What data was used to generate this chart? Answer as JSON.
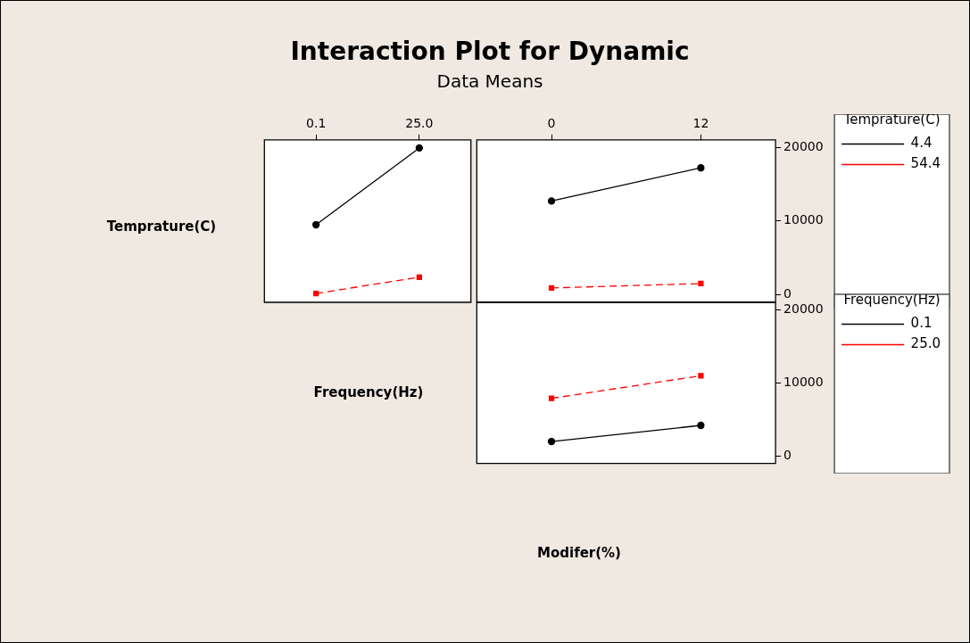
{
  "chart_data": [
    {
      "type": "line",
      "ylabel": "Temprature(C)",
      "xlabel": "Frequency(Hz)",
      "categories": [
        "0.1",
        "25.0"
      ],
      "ylim": [
        -1000,
        21000
      ],
      "tick_labels": "x",
      "series": [
        {
          "color": "#000000",
          "marker": "circle",
          "line_style": "solid",
          "values": [
            9500,
            19900
          ]
        },
        {
          "color": "#ff0000",
          "marker": "square",
          "line_style": "dashed",
          "values": [
            200,
            2400
          ]
        }
      ]
    },
    {
      "type": "line",
      "title": "Interaction Plot for Dynamic",
      "subtitle": "Data Means",
      "legend_title": "Temprature(C)",
      "categories": [
        "0",
        "12"
      ],
      "ylim": [
        -1000,
        21000
      ],
      "yticks": [
        0,
        10000,
        20000
      ],
      "legend": "right",
      "series": [
        {
          "name": "4.4",
          "color": "#000000",
          "marker": "circle",
          "line_style": "solid",
          "values": [
            12700,
            17200
          ]
        },
        {
          "name": "54.4",
          "color": "#ff0000",
          "marker": "square",
          "line_style": "dashed",
          "values": [
            900,
            1500
          ]
        }
      ]
    },
    {
      "type": "line",
      "xlabel": "Modifer(%)",
      "legend_title": "Frequency(Hz)",
      "categories": [
        "0",
        "12"
      ],
      "ylim": [
        -1000,
        21000
      ],
      "yticks": [
        0,
        10000,
        20000
      ],
      "tick_labels": "y",
      "legend": "right",
      "series": [
        {
          "name": "0.1",
          "color": "#000000",
          "marker": "circle",
          "line_style": "solid",
          "values": [
            2000,
            4200
          ]
        },
        {
          "name": "25.0",
          "color": "#ff0000",
          "marker": "square",
          "line_style": "dashed",
          "values": [
            7900,
            11000
          ]
        }
      ]
    }
  ]
}
